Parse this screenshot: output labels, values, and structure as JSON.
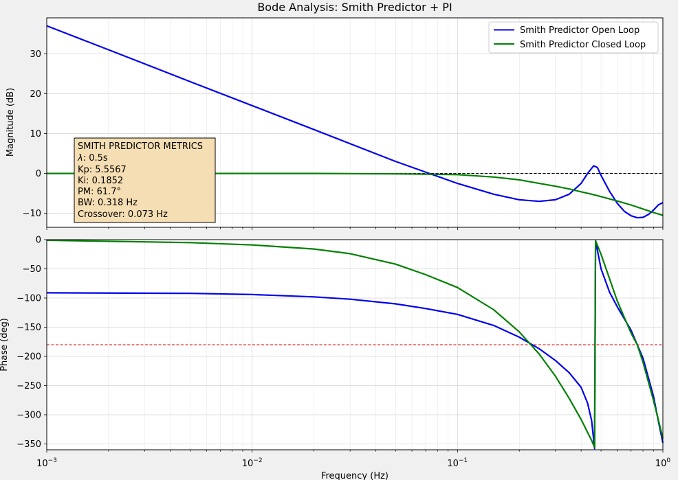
{
  "figure": {
    "title": "Bode Analysis: Smith Predictor + PI",
    "xlabel": "Frequency (Hz)"
  },
  "metrics": {
    "title": "SMITH PREDICTOR METRICS",
    "lambda_symbol": "λ",
    "lambda_value": ": 0.5s",
    "kp": "Kp: 5.5567",
    "ki": "Ki: 0.1852",
    "pm": "PM: 61.7°",
    "bw": "BW: 0.318 Hz",
    "crossover": "Crossover: 0.073 Hz"
  },
  "colors": {
    "open_loop": "#0000ee",
    "closed_loop": "#008000",
    "reference_mag": "#000000",
    "reference_phase": "#dd0000",
    "metrics_box": "#f5deb3"
  },
  "chart_data": [
    {
      "type": "line",
      "xscale": "log",
      "xlim": [
        0.001,
        1
      ],
      "ylim": [
        -13.5,
        39
      ],
      "ylabel": "Magnitude (dB)",
      "yticks": [
        30,
        20,
        10,
        0,
        -10
      ],
      "grid": true,
      "legend_position": "top-right",
      "reference_line": {
        "y": 0,
        "style": "dashed"
      },
      "series": [
        {
          "name": "Smith Predictor Open Loop",
          "x": [
            0.001,
            0.002,
            0.005,
            0.01,
            0.02,
            0.05,
            0.073,
            0.1,
            0.15,
            0.2,
            0.25,
            0.3,
            0.35,
            0.4,
            0.43,
            0.46,
            0.48,
            0.5,
            0.55,
            0.6,
            0.65,
            0.7,
            0.75,
            0.8,
            0.85,
            0.9,
            0.95,
            1.0
          ],
          "y": [
            37,
            31,
            23,
            17,
            11,
            3,
            0,
            -2.5,
            -5.2,
            -6.6,
            -7,
            -6.6,
            -5.2,
            -2.5,
            0,
            1.9,
            1.5,
            -0.5,
            -4.5,
            -7.5,
            -9.5,
            -10.6,
            -11.1,
            -11,
            -10.3,
            -9.2,
            -7.9,
            -7.3
          ]
        },
        {
          "name": "Smith Predictor Closed Loop",
          "x": [
            0.001,
            0.005,
            0.01,
            0.02,
            0.05,
            0.07,
            0.1,
            0.15,
            0.2,
            0.25,
            0.3,
            0.35,
            0.4,
            0.45,
            0.5,
            0.6,
            0.7,
            0.8,
            0.9,
            1.0
          ],
          "y": [
            0,
            0,
            0,
            0,
            -0.1,
            -0.2,
            -0.3,
            -0.9,
            -1.6,
            -2.5,
            -3.2,
            -3.9,
            -4.6,
            -5.2,
            -5.8,
            -6.9,
            -7.9,
            -8.9,
            -9.8,
            -10.5
          ]
        }
      ]
    },
    {
      "type": "line",
      "xscale": "log",
      "xlim": [
        0.001,
        1
      ],
      "ylim": [
        -360,
        0
      ],
      "ylabel": "Phase (deg)",
      "yticks": [
        0,
        -50,
        -100,
        -150,
        -200,
        -250,
        -300,
        -350
      ],
      "xticks": [
        {
          "value": 0.001,
          "base": "10",
          "exp": "−3"
        },
        {
          "value": 0.01,
          "base": "10",
          "exp": "−2"
        },
        {
          "value": 0.1,
          "base": "10",
          "exp": "−1"
        },
        {
          "value": 1,
          "base": "10",
          "exp": "0"
        }
      ],
      "grid": true,
      "reference_line": {
        "y": -180,
        "style": "dashed"
      },
      "series": [
        {
          "x": [
            0.001,
            0.005,
            0.01,
            0.02,
            0.03,
            0.05,
            0.07,
            0.1,
            0.15,
            0.2,
            0.25,
            0.3,
            0.35,
            0.4,
            0.43,
            0.45,
            0.465,
            0.47,
            0.5,
            0.55,
            0.6,
            0.7,
            0.75,
            0.8,
            0.9,
            0.95,
            1.0
          ],
          "y": [
            -91,
            -92,
            -94,
            -98,
            -102,
            -110,
            -118,
            -128,
            -147,
            -167,
            -187,
            -207,
            -228,
            -253,
            -280,
            -310,
            -358,
            -2,
            -50,
            -90,
            -115,
            -155,
            -180,
            -203,
            -268,
            -310,
            -348
          ]
        },
        {
          "x": [
            0.001,
            0.005,
            0.01,
            0.02,
            0.03,
            0.05,
            0.07,
            0.1,
            0.15,
            0.2,
            0.25,
            0.3,
            0.35,
            0.4,
            0.45,
            0.465,
            0.47,
            0.5,
            0.6,
            0.7,
            0.75,
            0.8,
            0.9,
            1.0
          ],
          "y": [
            -1,
            -5,
            -9,
            -16,
            -24,
            -42,
            -60,
            -82,
            -120,
            -158,
            -196,
            -234,
            -272,
            -308,
            -344,
            -356,
            -2,
            -25,
            -105,
            -160,
            -180,
            -210,
            -275,
            -340
          ]
        }
      ]
    }
  ]
}
